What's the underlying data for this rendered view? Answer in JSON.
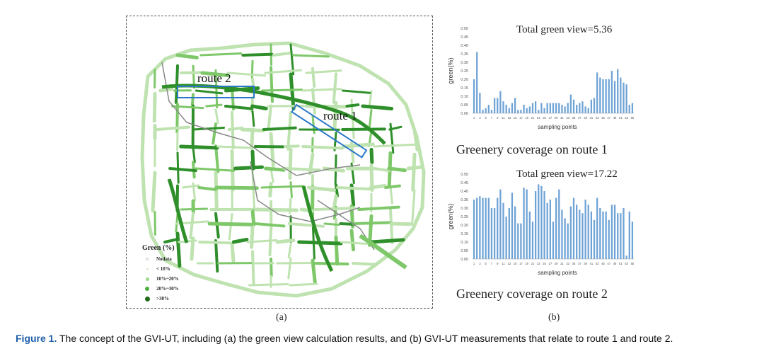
{
  "panel_a": {
    "route2_label": "route 2",
    "route1_label": "route 1",
    "caption": "(a)",
    "legend": {
      "title": "Green (%)",
      "items": [
        {
          "label": "Nodata",
          "color": "#ffffff",
          "size": 2
        },
        {
          "label": "< 10%",
          "color": "#d9ecd0",
          "size": 3
        },
        {
          "label": "10%~20%",
          "color": "#9fd88a",
          "size": 5
        },
        {
          "label": "20%~30%",
          "color": "#4caf3c",
          "size": 6
        },
        {
          "label": ">30%",
          "color": "#1f6b1a",
          "size": 7
        }
      ]
    },
    "colors": {
      "road_light": "#bfe3b0",
      "road_mid": "#7ec86a",
      "road_dark": "#2f8f2a",
      "road_gray": "#888888",
      "route_box": "#2a78c8"
    }
  },
  "panel_b": {
    "caption": "(b)",
    "bar_color": "#6fa3d6"
  },
  "chart_data": [
    {
      "type": "bar",
      "title": "Total green view=5.36",
      "caption": "Greenery coverage on route 1",
      "xlabel": "sampling points",
      "ylabel": "green(%)",
      "ylim": [
        0,
        0.5
      ],
      "yticks": [
        "0.00",
        "0.05",
        "0.10",
        "0.15",
        "0.20",
        "0.25",
        "0.30",
        "0.35",
        "0.40",
        "0.45",
        "0.50"
      ],
      "xticks": [
        "1",
        "3",
        "5",
        "7",
        "9",
        "11",
        "13",
        "15",
        "17",
        "19",
        "21",
        "23",
        "25",
        "27",
        "29",
        "31",
        "33",
        "35",
        "37",
        "39",
        "41",
        "43",
        "45",
        "47",
        "49",
        "51",
        "53",
        "55"
      ],
      "values": [
        0.2,
        0.36,
        0.12,
        0.02,
        0.03,
        0.05,
        0.02,
        0.09,
        0.09,
        0.13,
        0.07,
        0.05,
        0.03,
        0.06,
        0.09,
        0.02,
        0.02,
        0.05,
        0.03,
        0.04,
        0.06,
        0.07,
        0.02,
        0.06,
        0.03,
        0.06,
        0.06,
        0.06,
        0.06,
        0.06,
        0.05,
        0.04,
        0.06,
        0.11,
        0.08,
        0.05,
        0.06,
        0.07,
        0.04,
        0.03,
        0.08,
        0.09,
        0.24,
        0.21,
        0.2,
        0.2,
        0.2,
        0.25,
        0.19,
        0.26,
        0.21,
        0.18,
        0.17,
        0.05,
        0.06
      ]
    },
    {
      "type": "bar",
      "title": "Total green view=17.22",
      "caption": "Greenery coverage on route 2",
      "xlabel": "sampling points",
      "ylabel": "green(%)",
      "ylim": [
        0,
        0.5
      ],
      "yticks": [
        "0.00",
        "0.05",
        "0.10",
        "0.15",
        "0.20",
        "0.25",
        "0.30",
        "0.35",
        "0.40",
        "0.45",
        "0.50"
      ],
      "xticks": [
        "1",
        "3",
        "5",
        "7",
        "9",
        "11",
        "13",
        "15",
        "17",
        "19",
        "21",
        "23",
        "25",
        "27",
        "29",
        "31",
        "33",
        "35",
        "37",
        "39",
        "41",
        "43",
        "45",
        "47",
        "49",
        "51",
        "53",
        "55"
      ],
      "values": [
        0.35,
        0.36,
        0.37,
        0.36,
        0.36,
        0.36,
        0.3,
        0.3,
        0.36,
        0.41,
        0.33,
        0.25,
        0.3,
        0.39,
        0.31,
        0.21,
        0.21,
        0.42,
        0.41,
        0.28,
        0.22,
        0.4,
        0.44,
        0.43,
        0.4,
        0.33,
        0.35,
        0.22,
        0.36,
        0.41,
        0.29,
        0.24,
        0.21,
        0.31,
        0.36,
        0.32,
        0.29,
        0.27,
        0.35,
        0.32,
        0.28,
        0.23,
        0.36,
        0.3,
        0.28,
        0.28,
        0.23,
        0.32,
        0.32,
        0.27,
        0.27,
        0.3,
        0.02,
        0.28,
        0.22
      ]
    }
  ],
  "figure_caption": {
    "label": "Figure 1.",
    "text": " The concept of the GVI-UT, including (a) the green view calculation results, and (b) GVI-UT measurements that relate to route 1 and route 2."
  }
}
